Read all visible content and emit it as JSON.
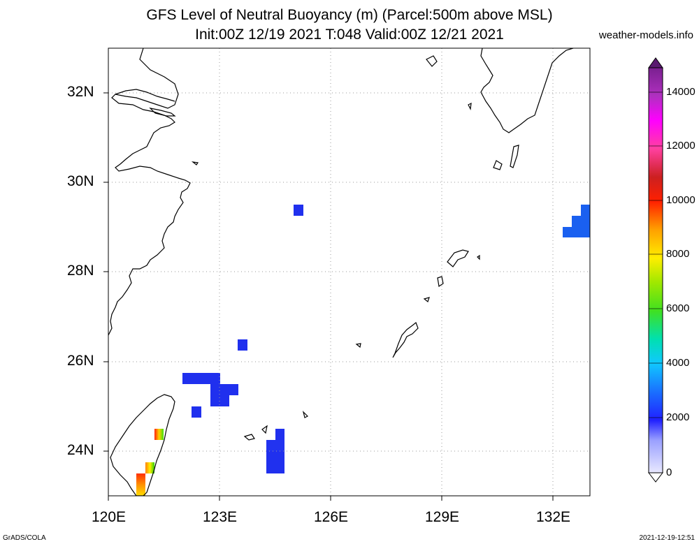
{
  "title": {
    "line1": "GFS Level of Neutral Buoyancy (m) (Parcel:500m above MSL)",
    "line2": "Init:00Z 12/19 2021 T:048 Valid:00Z 12/21 2021",
    "site": "weather-models.info"
  },
  "axes": {
    "lat_labels": [
      "32N",
      "30N",
      "28N",
      "26N",
      "24N"
    ],
    "lon_labels": [
      "120E",
      "123E",
      "126E",
      "129E",
      "132E"
    ],
    "lat_range": [
      23,
      33
    ],
    "lon_range": [
      120,
      133
    ],
    "grid": "dotted"
  },
  "colorbar": {
    "labels": [
      "14000",
      "12000",
      "10000",
      "8000",
      "6000",
      "4000",
      "2000",
      "0"
    ],
    "range": [
      0,
      15000
    ]
  },
  "footer": {
    "left": "GrADS/COLA",
    "right": "2021-12-19-12:51"
  },
  "colors": {
    "land_outline": "#000000",
    "grid": "#999999",
    "low_blue": "#2233ee",
    "mid_blue": "#1a60f0"
  }
}
